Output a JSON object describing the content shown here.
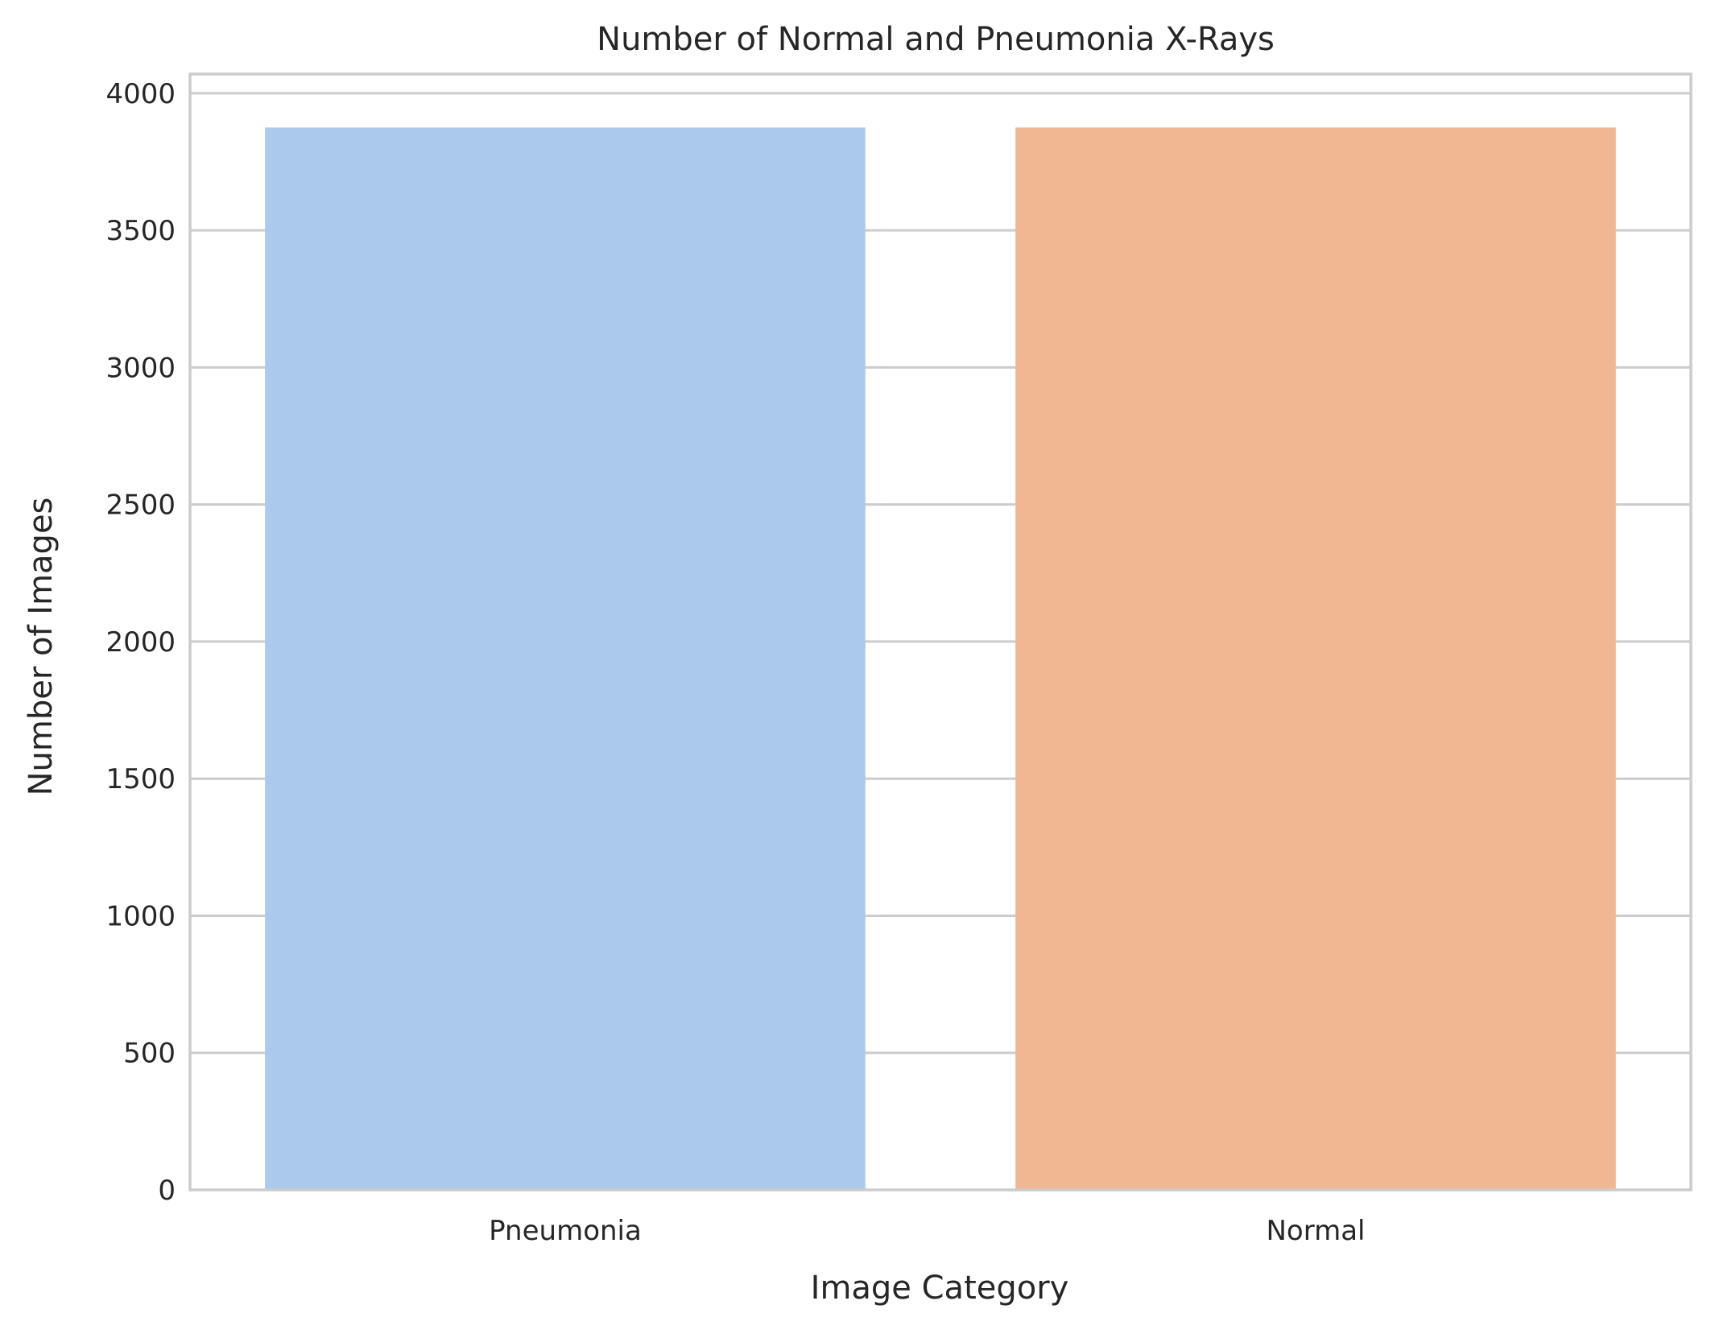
{
  "chart_data": {
    "type": "bar",
    "title": "Number of Normal and Pneumonia X-Rays",
    "xlabel": "Image Category",
    "ylabel": "Number of Images",
    "categories": [
      "Pneumonia",
      "Normal"
    ],
    "values": [
      3875,
      3875
    ],
    "colors": [
      "#abc9ec",
      "#f1b792"
    ],
    "ylim": [
      0,
      4070
    ],
    "yticks": [
      0,
      500,
      1000,
      1500,
      2000,
      2500,
      3000,
      3500,
      4000
    ],
    "grid": true,
    "grid_axis": "y",
    "legend": "none"
  },
  "style": {
    "grid_color": "#cccccc",
    "axis_color": "#cccccc",
    "background": "#ffffff"
  }
}
